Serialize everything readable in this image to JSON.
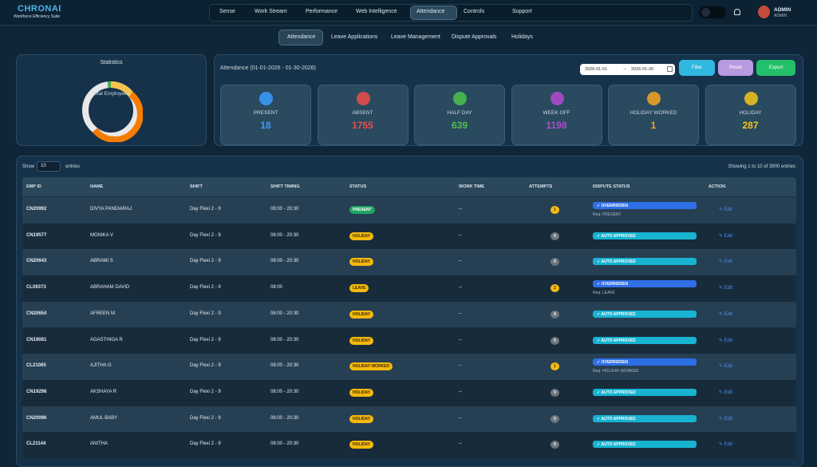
{
  "header": {
    "logo": "CHRONAI",
    "tagline": "Workforce Efficiency Suite",
    "nav": [
      "Sense",
      "Work Stream",
      "Performance",
      "Web Intelligence",
      "Attendance",
      "Controls",
      "Support"
    ],
    "user_name": "ADMIN",
    "user_role": "ADMIN"
  },
  "tabs": [
    "Attendance",
    "Leave Applications",
    "Leave Management",
    "Dispute Approvals",
    "Holidays"
  ],
  "statistics": {
    "title": "Statistics",
    "center_label": "Total Employees"
  },
  "attendance": {
    "title": "Attendance (01-01-2026 - 01-30-2026)",
    "from": "2026-01-01",
    "to": "2026-01-30",
    "buttons": [
      "Filter",
      "Reset",
      "Export"
    ],
    "stats": [
      {
        "label": "PRESENT",
        "value": 18,
        "color": "#3b9cff"
      },
      {
        "label": "ABSENT",
        "value": 1755,
        "color": "#ef4c4c"
      },
      {
        "label": "HALF DAY",
        "value": 639,
        "color": "#4cc24c"
      },
      {
        "label": "WEEK OFF",
        "value": 1198,
        "color": "#b04ccf"
      },
      {
        "label": "HOLIDAY WORKED",
        "value": 1,
        "color": "#f5a524"
      },
      {
        "label": "HOLIDAY",
        "value": 287,
        "color": "#f5c518"
      }
    ]
  },
  "table": {
    "show": "Show",
    "page_size": 10,
    "entries": "entries",
    "info": "Showing 1 to 10 of 3900 entries",
    "columns": [
      "EMP ID",
      "NAME",
      "SHIFT",
      "SHIFT TIMING",
      "STATUS",
      "WORK TIME",
      "ATTEMPTS",
      "DISPUTE STATUS",
      "ACTION"
    ],
    "rows": [
      {
        "emp_id": "CN20992",
        "name": "DIVYA PANDIARAJ",
        "shift": "Day Flexi 2 - 9",
        "shift_timing": "08:00 - 20:30",
        "status": "PRESENT",
        "status_color": "#1fa463",
        "work_time": "--",
        "attempts": 1,
        "dispute_status": "OVERRIDDEN",
        "request": "Req: PRESENT",
        "action": "Edit"
      },
      {
        "emp_id": "CN19577",
        "name": "MONIKA V",
        "shift": "Day Flexi 2 - 9",
        "shift_timing": "08:00 - 20:30",
        "status": "HOLIDAY",
        "status_color": "#f5b90f",
        "work_time": "--",
        "attempts": 0,
        "dispute_status": "AUTO APPROVED",
        "action": "Edit"
      },
      {
        "emp_id": "CN20643",
        "name": "ABRAMI S",
        "shift": "Day Flexi 2 - 9",
        "shift_timing": "08:00 - 20:30",
        "status": "HOLIDAY",
        "status_color": "#f5b90f",
        "work_time": "--",
        "attempts": 0,
        "dispute_status": "AUTO APPROVED",
        "action": "Edit"
      },
      {
        "emp_id": "CL09373",
        "name": "ABRAHAM DAVID",
        "shift": "Day Flexi 2 - 9",
        "shift_timing": "08:00",
        "status": "LEAVE",
        "status_color": "#f5b90f",
        "work_time": "--",
        "attempts": 2,
        "dispute_status": "OVERRIDDEN",
        "request": "Req: LEAVE",
        "action": "Edit"
      },
      {
        "emp_id": "CN20654",
        "name": "AFREEN M",
        "shift": "Day Flexi 2 - 9",
        "shift_timing": "08:00 - 20:30",
        "status": "HOLIDAY",
        "status_color": "#f5b90f",
        "work_time": "--",
        "attempts": 0,
        "dispute_status": "AUTO APPROVED",
        "action": "Edit"
      },
      {
        "emp_id": "CN19081",
        "name": "AGASTHIGA R",
        "shift": "Day Flexi 2 - 9",
        "shift_timing": "08:00 - 20:30",
        "status": "HOLIDAY",
        "status_color": "#f5b90f",
        "work_time": "--",
        "attempts": 0,
        "dispute_status": "AUTO APPROVED",
        "action": "Edit"
      },
      {
        "emp_id": "CL21065",
        "name": "AJITHA G",
        "shift": "Day Flexi 2 - 9",
        "shift_timing": "08:00 - 20:30",
        "status": "HOLIDAY WORKED",
        "status_color": "#f5b90f",
        "work_time": "--",
        "attempts": 1,
        "dispute_status": "OVERRIDDEN",
        "request": "Req: HOLIDAY WORKED",
        "action": "Edit"
      },
      {
        "emp_id": "CN19298",
        "name": "AKSHAYA R",
        "shift": "Day Flexi 2 - 9",
        "shift_timing": "08:00 - 20:30",
        "status": "HOLIDAY",
        "status_color": "#f5b90f",
        "work_time": "--",
        "attempts": 0,
        "dispute_status": "AUTO APPROVED",
        "action": "Edit"
      },
      {
        "emp_id": "CN20096",
        "name": "AMUL BABY",
        "shift": "Day Flexi 2 - 9",
        "shift_timing": "08:00 - 20:30",
        "status": "HOLIDAY",
        "status_color": "#f5b90f",
        "work_time": "--",
        "attempts": 0,
        "dispute_status": "AUTO APPROVED",
        "action": "Edit"
      },
      {
        "emp_id": "CL21144",
        "name": "ANITHA",
        "shift": "Day Flexi 2 - 9",
        "shift_timing": "08:00 - 20:30",
        "status": "HOLIDAY",
        "status_color": "#f5b90f",
        "work_time": "--",
        "attempts": 0,
        "dispute_status": "AUTO APPROVED",
        "action": "Edit"
      }
    ]
  }
}
